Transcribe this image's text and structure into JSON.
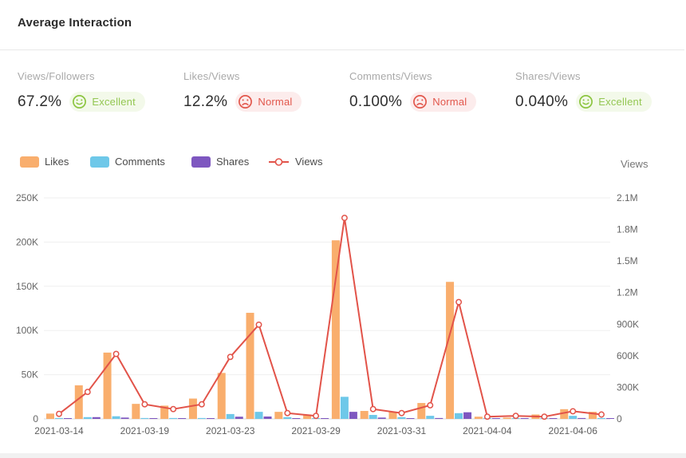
{
  "header": {
    "title": "Average Interaction"
  },
  "kpis": [
    {
      "label": "Views/Followers",
      "value": "67.2%",
      "status": "Excellent",
      "sentiment": "good"
    },
    {
      "label": "Likes/Views",
      "value": "12.2%",
      "status": "Normal",
      "sentiment": "bad"
    },
    {
      "label": "Comments/Views",
      "value": "0.100%",
      "status": "Normal",
      "sentiment": "bad"
    },
    {
      "label": "Shares/Views",
      "value": "0.040%",
      "status": "Excellent",
      "sentiment": "good"
    }
  ],
  "legend": [
    {
      "label": "Likes",
      "marker": "rect",
      "color": "#f9ae6d"
    },
    {
      "label": "Comments",
      "marker": "rect",
      "color": "#6ec8e9"
    },
    {
      "label": "Shares",
      "marker": "rect",
      "color": "#7e57c0"
    },
    {
      "label": "Views",
      "marker": "line",
      "color": "#e25349"
    }
  ],
  "colors": {
    "likes": "#f9ae6d",
    "comments": "#6ec8e9",
    "shares": "#7e57c0",
    "views": "#e25349",
    "status_good": "#8cc540",
    "status_good_bg": "#f3f9ea",
    "status_bad": "#e2574c",
    "status_bad_bg": "#fcecec",
    "grid": "#efefef",
    "axis_line": "#d9d9d9",
    "tick_text": "#666666"
  },
  "chart_data": {
    "type": "bar+line",
    "title": "",
    "categories": [
      "2021-03-14",
      "",
      "",
      "2021-03-19",
      "",
      "",
      "2021-03-23",
      "",
      "",
      "2021-03-29",
      "",
      "",
      "2021-03-31",
      "",
      "",
      "2021-04-04",
      "",
      "",
      "2021-04-06",
      ""
    ],
    "x_tick_labels": [
      "2021-03-14",
      "2021-03-19",
      "2021-03-23",
      "2021-03-29",
      "2021-03-31",
      "2021-04-04",
      "2021-04-06"
    ],
    "series": [
      {
        "name": "Likes",
        "type": "bar",
        "axis": "left",
        "values": [
          6000,
          38000,
          75000,
          17000,
          15000,
          23000,
          52000,
          120000,
          8000,
          5000,
          202000,
          9000,
          8000,
          18000,
          155000,
          2500,
          1500,
          5000,
          11000,
          8000
        ]
      },
      {
        "name": "Comments",
        "type": "bar",
        "axis": "left",
        "values": [
          1000,
          2000,
          3000,
          1000,
          1000,
          1000,
          5500,
          8000,
          2000,
          800,
          25000,
          4500,
          2000,
          3500,
          6500,
          1000,
          500,
          1000,
          3500,
          1000
        ]
      },
      {
        "name": "Shares",
        "type": "bar",
        "axis": "left",
        "values": [
          500,
          2000,
          1500,
          300,
          300,
          500,
          2500,
          2700,
          500,
          200,
          8000,
          1500,
          500,
          1000,
          7500,
          300,
          200,
          500,
          1000,
          500
        ]
      },
      {
        "name": "Views",
        "type": "line",
        "axis": "right",
        "values": [
          48000,
          256000,
          617000,
          139000,
          93000,
          139000,
          589000,
          895000,
          55000,
          29000,
          1910000,
          93000,
          55000,
          130000,
          1110000,
          21000,
          29000,
          21000,
          73000,
          42000
        ]
      }
    ],
    "left_axis": {
      "ticks": [
        "0",
        "50K",
        "100K",
        "150K",
        "200K",
        "250K"
      ],
      "min": 0,
      "max": 250000
    },
    "right_axis": {
      "title": "Views",
      "ticks": [
        "0",
        "300K",
        "600K",
        "900K",
        "1.2M",
        "1.5M",
        "1.8M",
        "2.1M"
      ],
      "min": 0,
      "max": 2100000
    },
    "grid": true,
    "legend_position": "top-left"
  }
}
